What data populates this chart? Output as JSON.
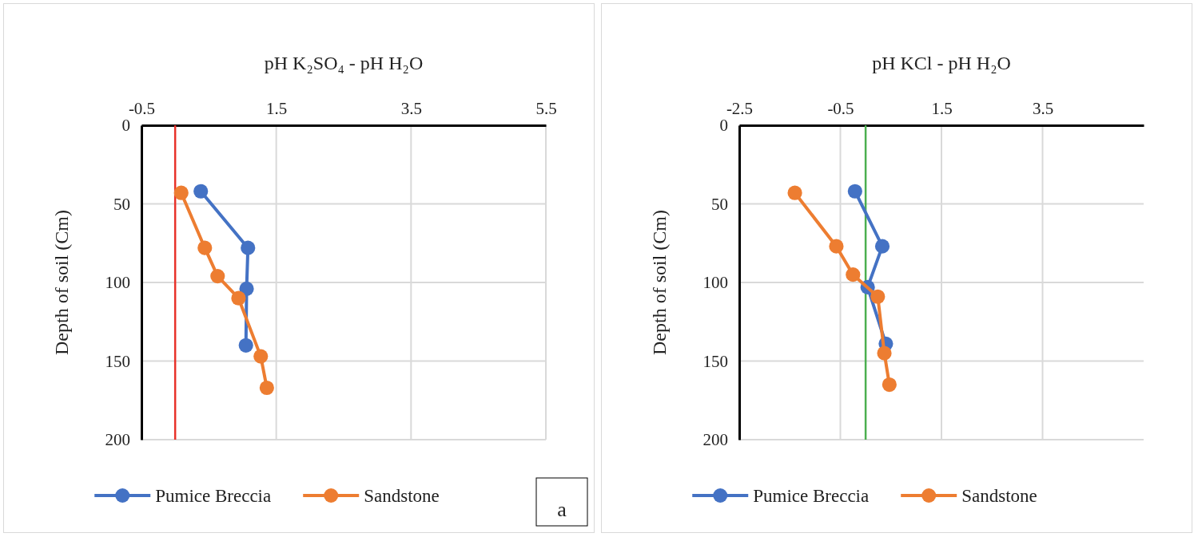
{
  "chart_data": [
    {
      "type": "line",
      "xlabel": "pH K₂SO₄ - pH H₂O",
      "ylabel": "Depth of soil (Cm)",
      "xlim": [
        -0.5,
        5.5
      ],
      "xticks": [
        -0.5,
        1.5,
        3.5,
        5.5
      ],
      "ylim": [
        200,
        0
      ],
      "yticks": [
        0,
        50,
        100,
        150,
        200
      ],
      "grid": true,
      "legend": "bottom",
      "marker": "circle",
      "series": [
        {
          "name": "Pumice Breccia",
          "color": "#4472c4",
          "x": [
            0.38,
            1.08,
            1.06,
            1.05
          ],
          "values": [
            42,
            78,
            104,
            140
          ]
        },
        {
          "name": "Sandstone",
          "color": "#ed7d31",
          "x": [
            0.09,
            0.44,
            0.63,
            0.94,
            1.27,
            1.36
          ],
          "values": [
            43,
            78,
            96,
            110,
            147,
            167
          ]
        }
      ],
      "ref_lines": [
        {
          "axis": "x",
          "value": 0,
          "color": "#e8322a"
        }
      ],
      "annotations": [
        "a"
      ]
    },
    {
      "type": "line",
      "xlabel": "pH KCl - pH H₂O",
      "ylabel": "Depth of soil (Cm)",
      "xlim": [
        -2.5,
        5.5
      ],
      "xticks": [
        -2.5,
        -0.5,
        1.5,
        3.5
      ],
      "ylim": [
        200,
        0
      ],
      "yticks": [
        0,
        50,
        100,
        150,
        200
      ],
      "grid": true,
      "legend": "bottom",
      "marker": "circle",
      "series": [
        {
          "name": "Pumice Breccia",
          "color": "#4472c4",
          "x": [
            -0.21,
            0.33,
            0.04,
            0.4
          ],
          "values": [
            42,
            77,
            103,
            139
          ]
        },
        {
          "name": "Sandstone",
          "color": "#ed7d31",
          "x": [
            -1.4,
            -0.58,
            -0.25,
            0.24,
            0.37,
            0.47
          ],
          "values": [
            43,
            77,
            95,
            109,
            145,
            165
          ]
        }
      ],
      "ref_lines": [
        {
          "axis": "x",
          "value": 0,
          "color": "#4caf50"
        }
      ]
    }
  ]
}
